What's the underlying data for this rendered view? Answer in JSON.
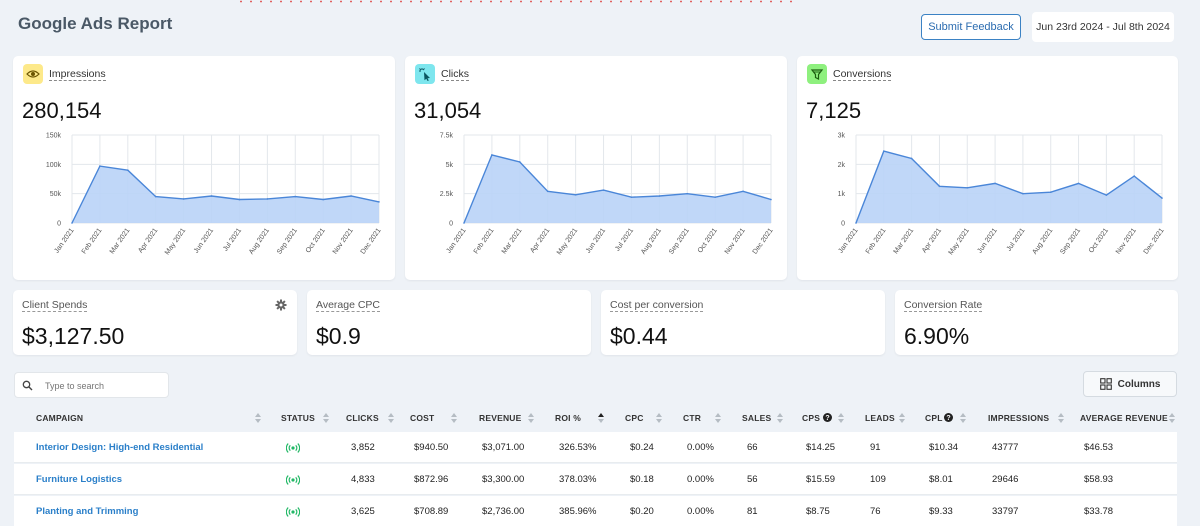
{
  "header": {
    "title": "Google Ads Report",
    "feedback_label": "Submit Feedback",
    "date_range": "Jun 23rd 2024 - Jul 8th 2024"
  },
  "months": [
    "Jan 2021",
    "Feb 2021",
    "Mar 2021",
    "Apr 2021",
    "May 2021",
    "Jun 2021",
    "Jul 2021",
    "Aug 2021",
    "Sep 2021",
    "Oct 2021",
    "Nov 2021",
    "Dec 2021"
  ],
  "kpis": [
    {
      "label": "Impressions",
      "value": "280,154",
      "icon": "eye-icon",
      "icon_bg": "#fde98a",
      "icon_color": "#8a6d00",
      "yticks": [
        "150k",
        "100k",
        "50k",
        "0"
      ]
    },
    {
      "label": "Clicks",
      "value": "31,054",
      "icon": "cursor-click-icon",
      "icon_bg": "#7ee6ee",
      "icon_color": "#0a6670",
      "yticks": [
        "7.5k",
        "5k",
        "2.5k",
        "0"
      ]
    },
    {
      "label": "Conversions",
      "value": "7,125",
      "icon": "filter-icon",
      "icon_bg": "#8ef07e",
      "icon_color": "#1c6b0e",
      "yticks": [
        "3k",
        "2k",
        "1k",
        "0"
      ]
    }
  ],
  "chart_data": [
    {
      "type": "area",
      "x": [
        "Jan 2021",
        "Feb 2021",
        "Mar 2021",
        "Apr 2021",
        "May 2021",
        "Jun 2021",
        "Jul 2021",
        "Aug 2021",
        "Sep 2021",
        "Oct 2021",
        "Nov 2021",
        "Dec 2021"
      ],
      "values": [
        0,
        97000,
        90000,
        45000,
        41000,
        46000,
        40000,
        41000,
        45000,
        40000,
        46000,
        36000
      ],
      "ylim": [
        0,
        150000
      ],
      "grid": true
    },
    {
      "type": "area",
      "x": [
        "Jan 2021",
        "Feb 2021",
        "Mar 2021",
        "Apr 2021",
        "May 2021",
        "Jun 2021",
        "Jul 2021",
        "Aug 2021",
        "Sep 2021",
        "Oct 2021",
        "Nov 2021",
        "Dec 2021"
      ],
      "values": [
        0,
        5800,
        5200,
        2700,
        2400,
        2800,
        2200,
        2300,
        2500,
        2200,
        2700,
        2000
      ],
      "ylim": [
        0,
        7500
      ],
      "grid": true
    },
    {
      "type": "area",
      "x": [
        "Jan 2021",
        "Feb 2021",
        "Mar 2021",
        "Apr 2021",
        "May 2021",
        "Jun 2021",
        "Jul 2021",
        "Aug 2021",
        "Sep 2021",
        "Oct 2021",
        "Nov 2021",
        "Dec 2021"
      ],
      "values": [
        0,
        2450,
        2200,
        1250,
        1200,
        1350,
        1000,
        1050,
        1350,
        950,
        1600,
        850
      ],
      "ylim": [
        0,
        3000
      ],
      "grid": true
    }
  ],
  "metrics": [
    {
      "label": "Client Spends",
      "value": "$3,127.50"
    },
    {
      "label": "Average CPC",
      "value": "$0.9"
    },
    {
      "label": "Cost per conversion",
      "value": "$0.44"
    },
    {
      "label": "Conversion Rate",
      "value": "6.90%"
    }
  ],
  "search": {
    "placeholder": "Type to search"
  },
  "columns_label": "Columns",
  "table": {
    "headers": [
      "CAMPAIGN",
      "STATUS",
      "CLICKS",
      "COST",
      "REVENUE",
      "ROI %",
      "CPC",
      "CTR",
      "SALES",
      "CPS",
      "LEADS",
      "CPL",
      "IMPRESSIONS",
      "AVERAGE REVENUE"
    ],
    "rows": [
      [
        "Interior Design: High-end Residential",
        "live",
        "3,852",
        "$940.50",
        "$3,071.00",
        "326.53%",
        "$0.24",
        "0.00%",
        "66",
        "$14.25",
        "91",
        "$10.34",
        "43777",
        "$46.53"
      ],
      [
        "Furniture Logistics",
        "live",
        "4,833",
        "$872.96",
        "$3,300.00",
        "378.03%",
        "$0.18",
        "0.00%",
        "56",
        "$15.59",
        "109",
        "$8.01",
        "29646",
        "$58.93"
      ],
      [
        "Planting and Trimming",
        "live",
        "3,625",
        "$708.89",
        "$2,736.00",
        "385.96%",
        "$0.20",
        "0.00%",
        "81",
        "$8.75",
        "76",
        "$9.33",
        "33797",
        "$33.78"
      ]
    ]
  },
  "colors": {
    "accent": "#3b82c4",
    "link": "#2a7fc9",
    "area_fill": "#b9d3f7",
    "area_line": "#4a86d8",
    "status_live": "#22b866"
  }
}
